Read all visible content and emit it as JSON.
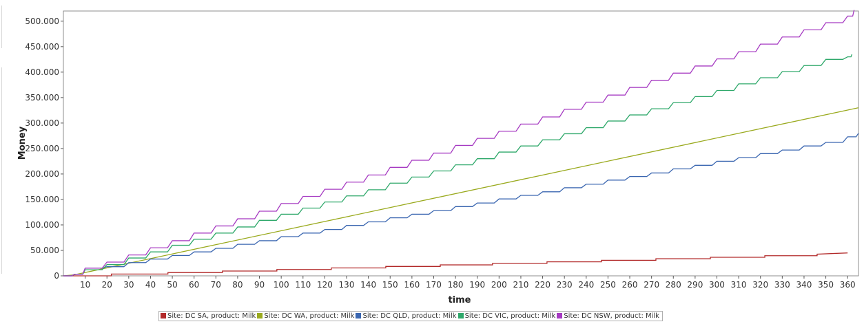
{
  "chart_data": {
    "type": "line",
    "xlabel": "time",
    "ylabel": "Money",
    "xlim": [
      0,
      365
    ],
    "ylim": [
      0,
      520000
    ],
    "x_ticks": [
      10,
      20,
      30,
      40,
      50,
      60,
      70,
      80,
      90,
      100,
      110,
      120,
      130,
      140,
      150,
      160,
      170,
      180,
      190,
      200,
      210,
      220,
      230,
      240,
      250,
      260,
      270,
      280,
      290,
      300,
      310,
      320,
      330,
      340,
      350,
      360
    ],
    "x_tick_labels": [
      "10",
      "20",
      "30",
      "40",
      "50",
      "60",
      "70",
      "80",
      "90",
      "100",
      "110",
      "120",
      "130",
      "140",
      "150",
      "160",
      "170",
      "180",
      "190",
      "200",
      "210",
      "220",
      "230",
      "240",
      "250",
      "260",
      "270",
      "280",
      "290",
      "300",
      "310",
      "320",
      "330",
      "340",
      "350",
      "360"
    ],
    "y_ticks": [
      0,
      50000,
      100000,
      150000,
      200000,
      250000,
      300000,
      350000,
      400000,
      450000,
      500000
    ],
    "y_tick_labels": [
      "0",
      "50.000",
      "100.000",
      "150.000",
      "200.000",
      "250.000",
      "300.000",
      "350.000",
      "400.000",
      "450.000",
      "500.000"
    ],
    "grid": false,
    "legend_position": "bottom",
    "series": [
      {
        "name": "Site: DC SA, product: Milk",
        "color": "#b22a2a",
        "style": "steps",
        "x": [
          0,
          22,
          22,
          48,
          48,
          73,
          73,
          98,
          98,
          123,
          123,
          148,
          148,
          173,
          173,
          197,
          197,
          222,
          222,
          247,
          247,
          272,
          272,
          297,
          297,
          322,
          322,
          346,
          346,
          360
        ],
        "y": [
          0,
          0,
          3500,
          3500,
          6500,
          6500,
          9500,
          9500,
          12500,
          12500,
          15500,
          15500,
          18500,
          18500,
          21500,
          21500,
          24500,
          24500,
          27500,
          27500,
          30500,
          30500,
          33500,
          33500,
          36500,
          36500,
          39500,
          39500,
          42500,
          45000
        ]
      },
      {
        "name": "Site: DC WA, product: Milk",
        "color": "#9aaa1e",
        "style": "linear",
        "x": [
          0,
          5,
          365
        ],
        "y": [
          0,
          2000,
          330000
        ]
      },
      {
        "name": "Site: DC QLD, product: Milk",
        "color": "#3a66b0",
        "style": "linear",
        "x": [
          0,
          5,
          10,
          20,
          30,
          40,
          50,
          60,
          70,
          80,
          90,
          100,
          110,
          120,
          130,
          140,
          150,
          160,
          170,
          180,
          190,
          200,
          210,
          220,
          230,
          240,
          250,
          260,
          270,
          280,
          290,
          300,
          310,
          320,
          330,
          340,
          350,
          360,
          365
        ],
        "y": [
          0,
          3000,
          15000,
          18000,
          26000,
          33000,
          40000,
          47000,
          54000,
          62000,
          69000,
          77000,
          84000,
          91000,
          99000,
          106000,
          114000,
          121000,
          128000,
          136000,
          143000,
          151000,
          158000,
          165000,
          173000,
          180000,
          188000,
          195000,
          202000,
          210000,
          217000,
          225000,
          232000,
          240000,
          247000,
          255000,
          262000,
          273000,
          280000
        ]
      },
      {
        "name": "Site: DC VIC, product: Milk",
        "color": "#2ea86a",
        "style": "linear",
        "x": [
          0,
          5,
          10,
          20,
          30,
          40,
          50,
          60,
          70,
          80,
          90,
          100,
          110,
          120,
          130,
          140,
          150,
          160,
          170,
          180,
          190,
          200,
          210,
          220,
          230,
          240,
          250,
          260,
          270,
          280,
          290,
          300,
          310,
          320,
          330,
          340,
          350,
          360,
          362
        ],
        "y": [
          0,
          3000,
          12000,
          22000,
          35000,
          47000,
          60000,
          72000,
          84000,
          96000,
          109000,
          121000,
          133000,
          145000,
          157000,
          169000,
          182000,
          194000,
          206000,
          218000,
          230000,
          243000,
          255000,
          267000,
          279000,
          291000,
          304000,
          316000,
          328000,
          340000,
          352000,
          364000,
          377000,
          389000,
          401000,
          413000,
          425000,
          430000,
          435000
        ]
      },
      {
        "name": "Site: DC NSW, product: Milk",
        "color": "#a63ac2",
        "style": "linear",
        "x": [
          0,
          5,
          10,
          20,
          30,
          40,
          50,
          60,
          70,
          80,
          90,
          100,
          110,
          120,
          130,
          140,
          150,
          160,
          170,
          180,
          190,
          200,
          210,
          220,
          230,
          240,
          250,
          260,
          270,
          280,
          290,
          300,
          310,
          320,
          330,
          340,
          350,
          360,
          363
        ],
        "y": [
          0,
          3000,
          15000,
          27000,
          41000,
          55000,
          69000,
          84000,
          98000,
          112000,
          127000,
          142000,
          156000,
          170000,
          184000,
          198000,
          213000,
          227000,
          241000,
          256000,
          270000,
          284000,
          298000,
          312000,
          327000,
          341000,
          355000,
          370000,
          384000,
          398000,
          412000,
          426000,
          440000,
          455000,
          469000,
          483000,
          497000,
          510000,
          522000
        ]
      }
    ]
  }
}
